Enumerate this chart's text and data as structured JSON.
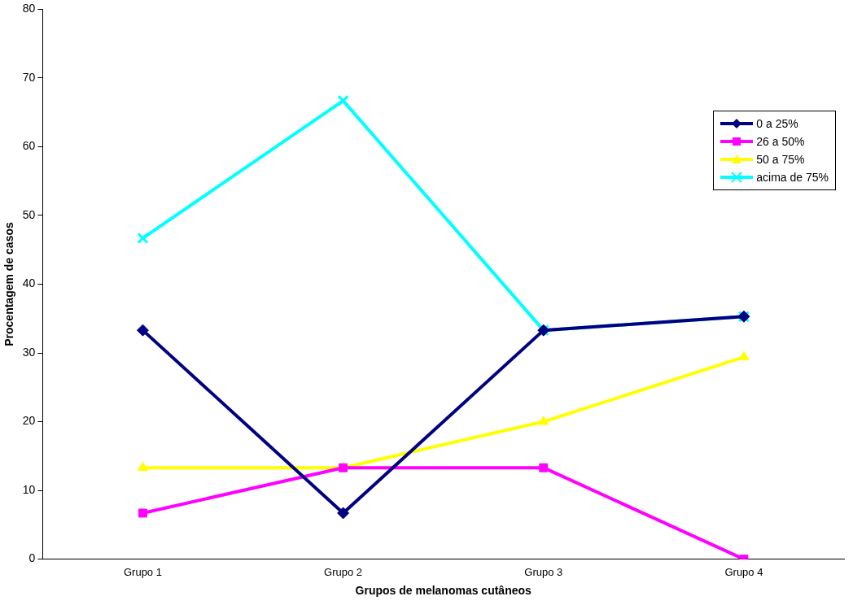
{
  "chart_data": {
    "type": "line",
    "xlabel": "Grupos de melanomas cutâneos",
    "ylabel": "Procentagem de casos",
    "categories": [
      "Grupo 1",
      "Grupo 2",
      "Grupo 3",
      "Grupo 4"
    ],
    "series": [
      {
        "name": "0 a 25%",
        "color": "#000080",
        "marker": "diamond",
        "values": [
          33.3,
          6.7,
          33.3,
          35.3
        ]
      },
      {
        "name": "26 a 50%",
        "color": "#ff00ff",
        "marker": "square",
        "values": [
          6.7,
          13.3,
          13.3,
          0
        ]
      },
      {
        "name": "50 a 75%",
        "color": "#ffff00",
        "marker": "triangle",
        "values": [
          13.3,
          13.3,
          20,
          29.4
        ]
      },
      {
        "name": "acima de 75%",
        "color": "#00ffff",
        "marker": "cross",
        "values": [
          46.7,
          66.7,
          33.3,
          35.3
        ]
      }
    ],
    "ylim": [
      0,
      80
    ],
    "yticks": [
      0,
      10,
      20,
      30,
      40,
      50,
      60,
      70,
      80
    ],
    "grid": false,
    "legend": "top right",
    "line_style": "solid"
  }
}
